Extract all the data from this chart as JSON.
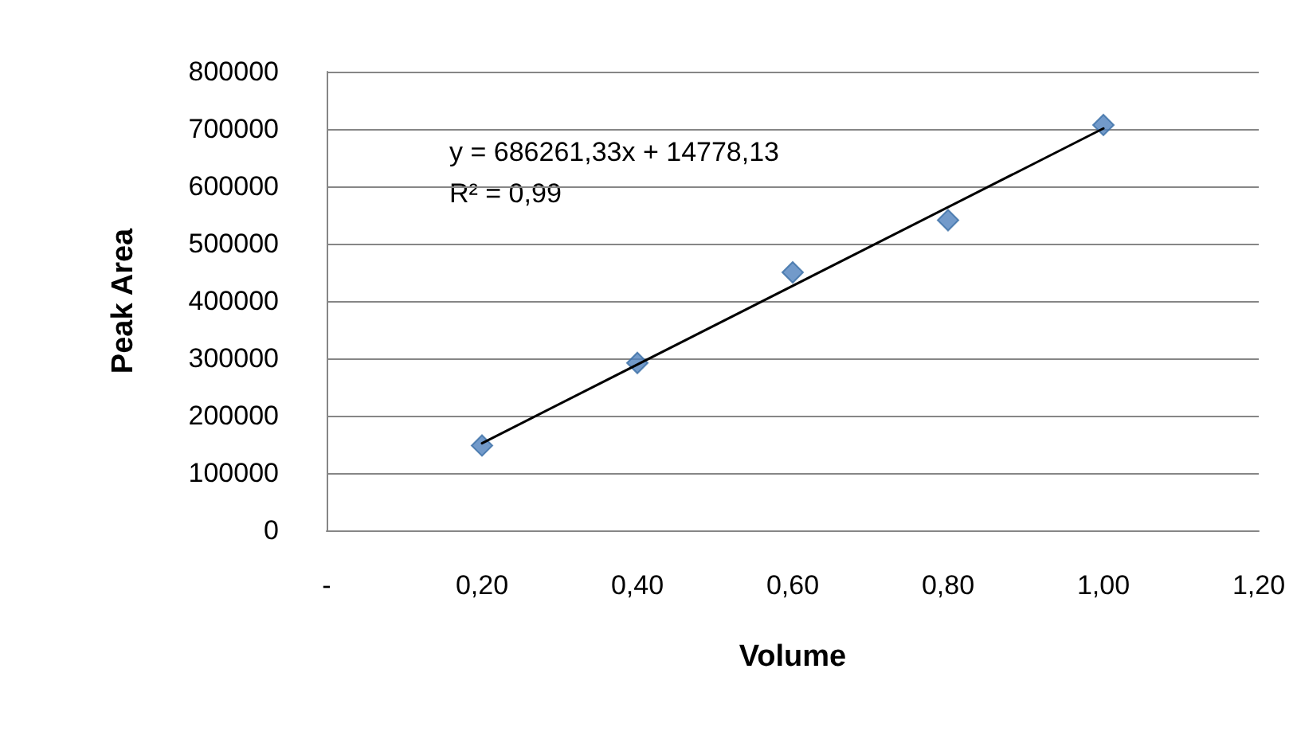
{
  "chart_data": {
    "type": "scatter",
    "xlabel": "Volume",
    "ylabel": "Peak Area",
    "annotations": [
      "y = 686261,33x + 14778,13",
      "R² = 0,99"
    ],
    "series": [
      {
        "color": "#4f81bd",
        "x": [
          0.2,
          0.4,
          0.6,
          0.8,
          1.0
        ],
        "values": [
          148000,
          292000,
          450000,
          541000,
          707000
        ]
      },
      {
        "type": "line",
        "color": "#000000",
        "marker": "none",
        "x": [
          0.2,
          1.0
        ],
        "values": [
          152000,
          701000
        ]
      }
    ],
    "xlim": [
      0,
      1.2
    ],
    "xticks": [
      {
        "value": 0,
        "label": "-"
      },
      {
        "value": 0.2,
        "label": "0,20"
      },
      {
        "value": 0.4,
        "label": "0,40"
      },
      {
        "value": 0.6,
        "label": "0,60"
      },
      {
        "value": 0.8,
        "label": "0,80"
      },
      {
        "value": 1.0,
        "label": "1,00"
      },
      {
        "value": 1.2,
        "label": "1,20"
      }
    ],
    "ylim": [
      0,
      800000
    ],
    "yticks": [
      0,
      100000,
      200000,
      300000,
      400000,
      500000,
      600000,
      700000,
      800000
    ],
    "grid": "y",
    "marker": "diamond"
  }
}
